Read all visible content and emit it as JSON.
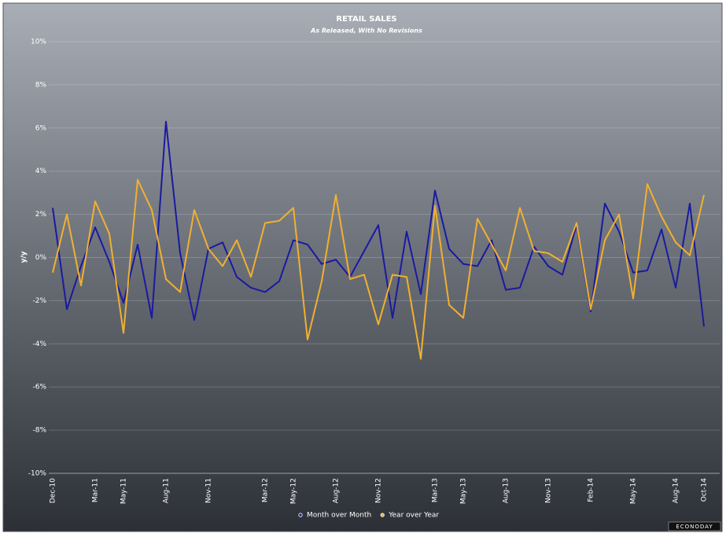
{
  "chart_data": {
    "type": "line",
    "title": "RETAIL SALES",
    "subtitle": "As Released, With No Revisions",
    "ylabel": "y/y",
    "brand": "ECONODAY",
    "categories": [
      "Dec-10",
      null,
      null,
      "Mar-11",
      null,
      "May-11",
      null,
      null,
      "Aug-11",
      null,
      null,
      "Nov-11",
      null,
      null,
      null,
      "Mar-12",
      null,
      "May-12",
      null,
      null,
      "Aug-12",
      null,
      null,
      "Nov-12",
      null,
      null,
      null,
      "Mar-13",
      null,
      "May-13",
      null,
      null,
      "Aug-13",
      null,
      null,
      "Nov-13",
      null,
      null,
      "Feb-14",
      null,
      null,
      "May-14",
      null,
      null,
      "Aug-14",
      null,
      "Oct-14"
    ],
    "series": [
      {
        "name": "Month over Month",
        "color": "#1a1aa0",
        "values": [
          2.3,
          -2.4,
          -0.4,
          1.4,
          -0.2,
          -2.1,
          0.6,
          -2.8,
          6.3,
          0.2,
          -2.9,
          0.4,
          0.7,
          -0.9,
          -1.4,
          -1.6,
          -1.1,
          0.8,
          0.6,
          -0.3,
          -0.1,
          -0.9,
          0.3,
          1.5,
          -2.8,
          1.2,
          -1.7,
          3.1,
          0.4,
          -0.3,
          -0.4,
          0.8,
          -1.5,
          -1.4,
          0.5,
          -0.4,
          -0.8,
          1.5,
          -2.5,
          2.5,
          1.2,
          -0.7,
          -0.6,
          1.3,
          -1.4,
          2.5,
          -3.2
        ]
      },
      {
        "name": "Year over Year",
        "color": "#f0b030",
        "values": [
          -0.7,
          2.0,
          -1.3,
          2.6,
          1.1,
          -3.5,
          3.6,
          2.2,
          -1.0,
          -1.6,
          2.2,
          0.4,
          -0.4,
          0.8,
          -0.9,
          1.6,
          1.7,
          2.3,
          -3.8,
          -1.1,
          2.9,
          -1.0,
          -0.8,
          -3.1,
          -0.8,
          -0.9,
          -4.7,
          2.4,
          -2.2,
          -2.8,
          1.8,
          0.6,
          -0.6,
          2.3,
          0.3,
          0.2,
          -0.2,
          1.6,
          -2.4,
          0.8,
          2.0,
          -1.9,
          3.4,
          1.9,
          0.7,
          0.1,
          2.9
        ]
      }
    ],
    "ylim": [
      -10,
      10
    ],
    "yticks": [
      {
        "value": -10,
        "label": "-10%"
      },
      {
        "value": -8,
        "label": "-8%"
      },
      {
        "value": -6,
        "label": "-6%"
      },
      {
        "value": -4,
        "label": "-4%"
      },
      {
        "value": -2,
        "label": "-2%"
      },
      {
        "value": 0,
        "label": "0%"
      },
      {
        "value": 2,
        "label": "2%"
      },
      {
        "value": 4,
        "label": "4%"
      },
      {
        "value": 6,
        "label": "6%"
      },
      {
        "value": 8,
        "label": "8%"
      },
      {
        "value": 10,
        "label": "10%"
      }
    ],
    "grid": true
  }
}
